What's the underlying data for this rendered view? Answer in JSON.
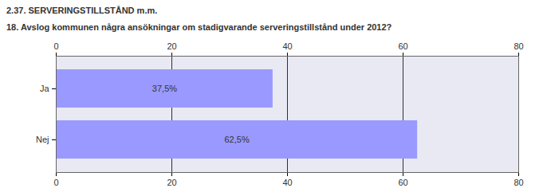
{
  "chart_data": {
    "type": "bar",
    "title": "2.37. SERVERINGSTILLSTÅND m.m.",
    "subtitle": "18. Avslog kommunen några ansökningar om stadigvarande serveringstillstånd under 2012?",
    "categories": [
      "Ja",
      "Nej"
    ],
    "values": [
      37.5,
      62.5
    ],
    "value_labels": [
      "37,5%",
      "62,5%"
    ],
    "color": "#9999ff",
    "orientation": "horizontal",
    "data_labels": true,
    "xlim": [
      0,
      80
    ],
    "xticks": [
      0,
      20,
      40,
      60,
      80
    ],
    "grid": true
  }
}
